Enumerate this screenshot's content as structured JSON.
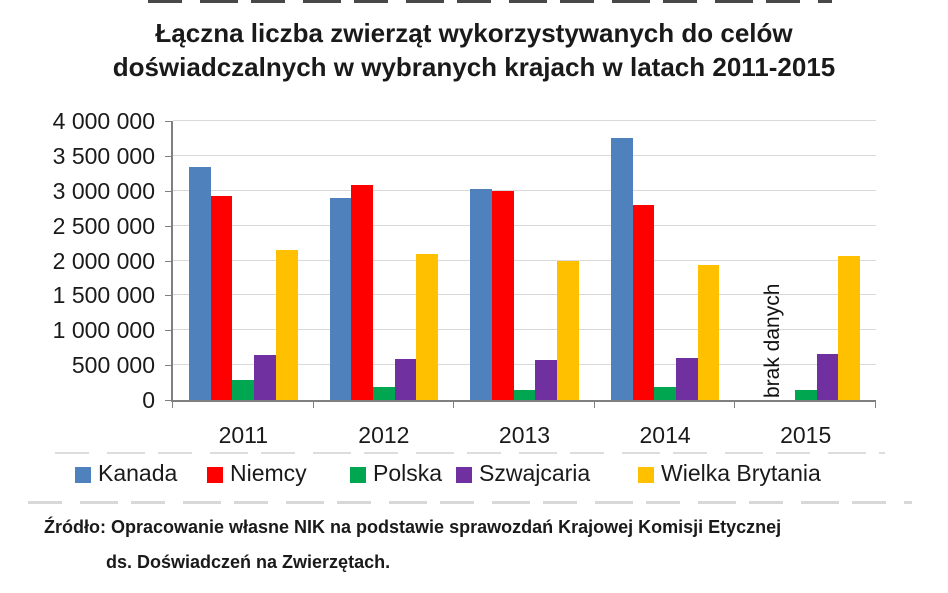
{
  "chart_data": {
    "type": "bar",
    "title": "Łączna liczba zwierząt wykorzystywanych do celów doświadczalnych w wybranych krajach w latach 2011-2015",
    "title_lines": [
      "Łączna liczba zwierząt wykorzystywanych do celów",
      "doświadczalnych w wybranych krajach w latach 2011-2015"
    ],
    "categories": [
      "2011",
      "2012",
      "2013",
      "2014",
      "2015"
    ],
    "series": [
      {
        "name": "Kanada",
        "color": "#4F81BD",
        "values": [
          3340000,
          2900000,
          3020000,
          3750000,
          null
        ]
      },
      {
        "name": "Niemcy",
        "color": "#FF0000",
        "values": [
          2920000,
          3080000,
          3000000,
          2800000,
          null
        ]
      },
      {
        "name": "Polska",
        "color": "#00A650",
        "values": [
          280000,
          180000,
          140000,
          190000,
          140000
        ]
      },
      {
        "name": "Szwajcaria",
        "color": "#7030A0",
        "values": [
          650000,
          590000,
          570000,
          600000,
          660000
        ]
      },
      {
        "name": "Wielka Brytania",
        "color": "#FFC000",
        "values": [
          2150000,
          2100000,
          2000000,
          1930000,
          2070000
        ]
      }
    ],
    "ylim": [
      0,
      4000000
    ],
    "ytick_step": 500000,
    "ytick_labels": [
      "0",
      "500 000",
      "1 000 000",
      "1 500 000",
      "2 000 000",
      "2 500 000",
      "3 000 000",
      "3 500 000",
      "4 000 000"
    ],
    "grid": true,
    "legend_position": "bottom",
    "annotation": {
      "text": "brak danych",
      "category": "2015",
      "covers_series": [
        "Kanada",
        "Niemcy"
      ],
      "rotation_deg": -90
    }
  },
  "source": {
    "line1": "Źródło: Opracowanie własne NIK na podstawie sprawozdań Krajowej Komisji Etycznej",
    "line2": "ds. Doświadczeń na Zwierzętach."
  }
}
